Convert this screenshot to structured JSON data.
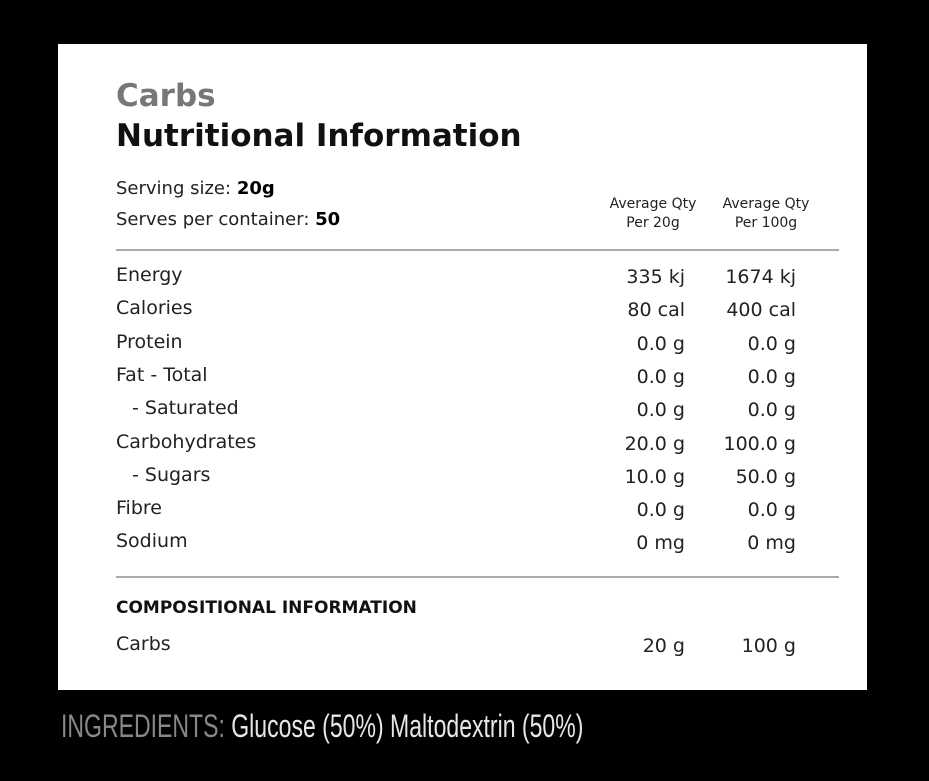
{
  "header": {
    "category": "Carbs",
    "title": "Nutritional Information"
  },
  "serving": [
    {
      "label": "Serving size:",
      "value": "20g"
    },
    {
      "label": "Serves per container:",
      "value": "50"
    }
  ],
  "columns": [
    {
      "line1": "Average Qty",
      "line2": "Per 20g"
    },
    {
      "line1": "Average Qty",
      "line2": "Per 100g"
    }
  ],
  "table": {
    "rows": [
      [
        "Energy",
        "335 kj",
        "1674 kj"
      ],
      [
        "Calories",
        "80 cal",
        "400 cal"
      ],
      [
        "Protein",
        "0.0 g",
        "0.0 g"
      ],
      [
        "Fat - Total",
        "0.0 g",
        "0.0 g"
      ],
      [
        "- Saturated",
        "0.0 g",
        "0.0 g"
      ],
      [
        "Carbohydrates",
        "20.0 g",
        "100.0 g"
      ],
      [
        "- Sugars",
        "10.0 g",
        "50.0 g"
      ],
      [
        "Fibre",
        "0.0 g",
        "0.0 g"
      ],
      [
        "Sodium",
        "0 mg",
        "0 mg"
      ]
    ]
  },
  "composition": {
    "heading": "COMPOSITIONAL INFORMATION",
    "rows": [
      [
        "Carbs",
        "20 g",
        "100 g"
      ]
    ]
  },
  "ingredients": {
    "label": "INGREDIENTS:",
    "text": "Glucose (50%) Maltodextrin (50%)"
  }
}
